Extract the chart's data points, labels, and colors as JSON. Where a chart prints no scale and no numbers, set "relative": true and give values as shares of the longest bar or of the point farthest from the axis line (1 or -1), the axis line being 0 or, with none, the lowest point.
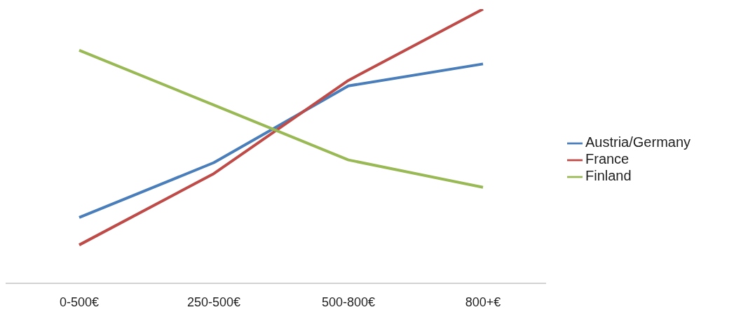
{
  "chart_data": {
    "type": "line",
    "relative": true,
    "categories": [
      "0-500€",
      "250-500€",
      "500-800€",
      "800+€"
    ],
    "series": [
      {
        "name": "Austria/Germany",
        "color": "#4a7ebb",
        "values": [
          0.24,
          0.44,
          0.72,
          0.8
        ]
      },
      {
        "name": "France",
        "color": "#be4b48",
        "values": [
          0.14,
          0.4,
          0.74,
          1
        ]
      },
      {
        "name": "Finland",
        "color": "#98b954",
        "values": [
          0.85,
          0.65,
          0.45,
          0.35
        ]
      }
    ],
    "legend": "right",
    "marker": "none",
    "line_style": "solid"
  }
}
